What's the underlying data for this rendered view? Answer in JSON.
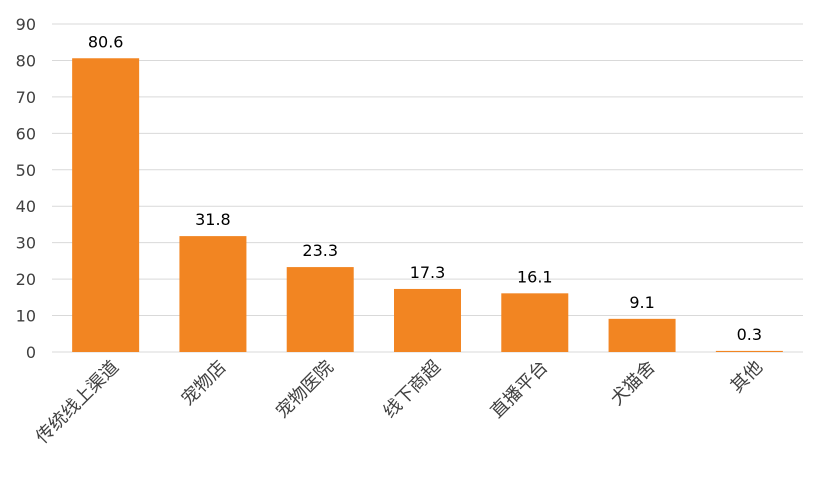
{
  "chart_data": {
    "type": "bar",
    "title": "",
    "xlabel": "",
    "ylabel": "",
    "categories": [
      "传统线上渠道",
      "宠物店",
      "宠物医院",
      "线下商超",
      "直播平台",
      "犬猫舍",
      "其他"
    ],
    "values": [
      80.6,
      31.8,
      23.3,
      17.3,
      16.1,
      9.1,
      0.3
    ],
    "data_labels": [
      "80.6",
      "31.8",
      "23.3",
      "17.3",
      "16.1",
      "9.1",
      "0.3"
    ],
    "ylim": [
      0,
      90
    ],
    "yticks": [
      "0",
      "10",
      "20",
      "30",
      "40",
      "50",
      "60",
      "70",
      "80",
      "90"
    ],
    "grid": true,
    "legend": "none",
    "bar_color": "#F28522",
    "grid_color": "#D9D9D9",
    "text_color": "#000000",
    "tick_color": "#404040"
  }
}
